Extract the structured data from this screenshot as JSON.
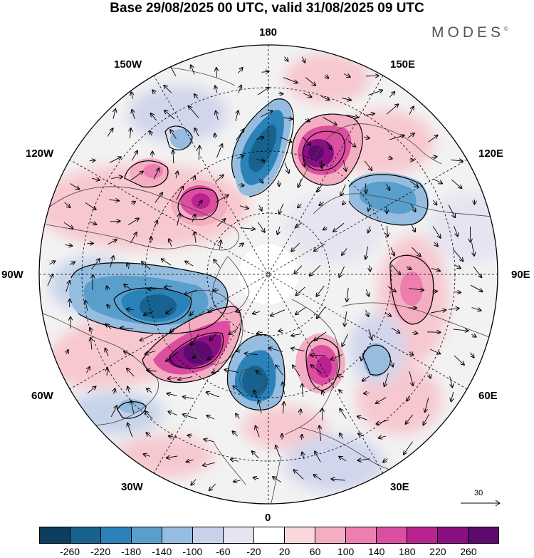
{
  "title": "Base 29/08/2025 00 UTC, valid 31/08/2025 09 UTC",
  "brand": "MODES",
  "brand_mark": "©",
  "longitude_labels": {
    "lon_180": "180",
    "lon_150e": "150E",
    "lon_120e": "120E",
    "lon_90e": "90E",
    "lon_60e": "60E",
    "lon_30e": "30E",
    "lon_0": "0",
    "lon_30w": "30W",
    "lon_60w": "60W",
    "lon_90w": "90W",
    "lon_120w": "120W",
    "lon_150w": "150W"
  },
  "colorbar": {
    "colors": [
      "#0c3d5c",
      "#17628f",
      "#2b82b8",
      "#5a9fcc",
      "#96bddf",
      "#c6d3ea",
      "#e6e4f1",
      "#ffffff",
      "#fad7da",
      "#f4aec2",
      "#ec7fb0",
      "#dc4ea0",
      "#b8238f",
      "#8a0f82",
      "#5c0a6e"
    ],
    "tick_labels": [
      "-260",
      "-220",
      "-180",
      "-140",
      "-100",
      "-60",
      "-20",
      "20",
      "60",
      "100",
      "140",
      "180",
      "220",
      "260"
    ]
  },
  "vector_scale": {
    "label": "30"
  }
}
